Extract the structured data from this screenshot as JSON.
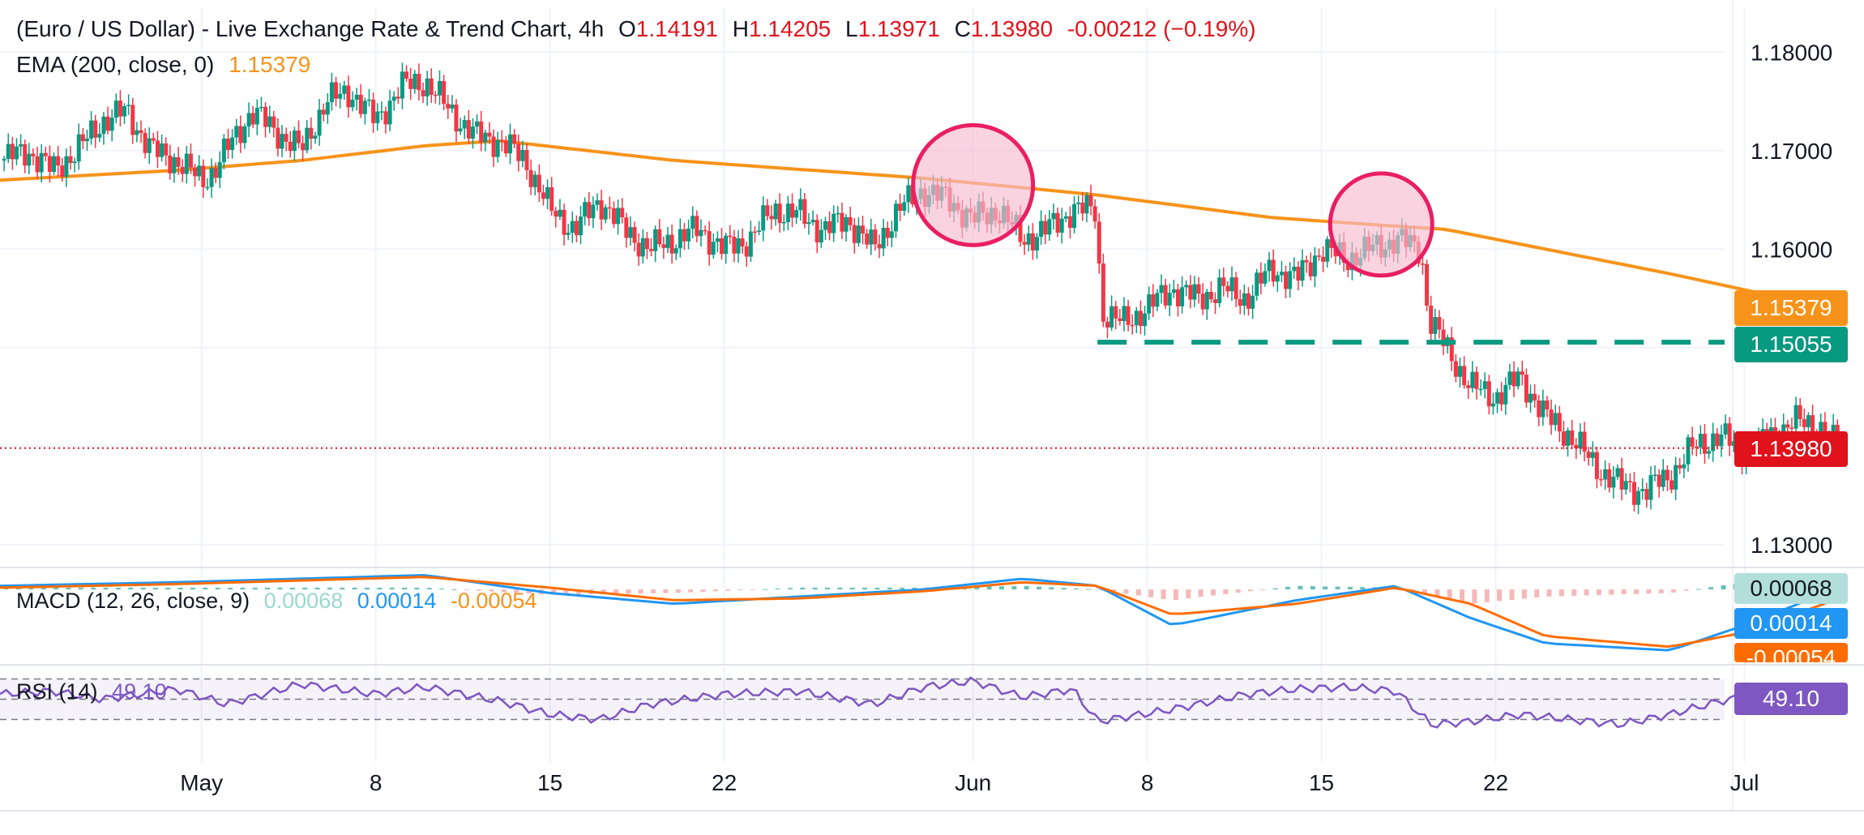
{
  "header": {
    "title": "(Euro / US Dollar) - Live Exchange Rate & Trend Chart, 4h",
    "o_label": "O",
    "open": "1.14191",
    "h_label": "H",
    "high": "1.14205",
    "l_label": "L",
    "low": "1.13971",
    "c_label": "C",
    "close": "1.13980",
    "change": "-0.00212 (−0.19%)"
  },
  "ema_legend": {
    "label": "EMA (200, close, 0)",
    "value": "1.15379"
  },
  "macd_legend": {
    "label": "MACD (12, 26, close, 9)",
    "hist": "0.00068",
    "macd": "0.00014",
    "signal": "-0.00054"
  },
  "rsi_legend": {
    "label": "RSI (14)",
    "value": "49.10"
  },
  "price_tags": {
    "ema": "1.15379",
    "support": "1.15055",
    "last": "1.13980",
    "macd_hist": "0.00068",
    "macd": "0.00014",
    "macd_signal": "-0.00054",
    "rsi": "49.10"
  },
  "colors": {
    "up": "#089981",
    "down": "#f23645",
    "ema": "#f7931a",
    "support": "#089981",
    "last": "#e0121b",
    "macd": "#2196f3",
    "signal": "#ff6d00",
    "rsi": "#7e57c2",
    "circle_stroke": "#e91e63",
    "circle_fill": "#f8bbd0"
  },
  "chart_data": {
    "type": "candlestick",
    "timeframe": "4h",
    "yaxis": {
      "ticks": [
        "1.18000",
        "1.17000",
        "1.16000",
        "1.15000",
        "1.14000",
        "1.13000"
      ],
      "ylim": [
        1.1285,
        1.182
      ]
    },
    "xaxis": {
      "ticks": [
        {
          "label": "May",
          "day": 1
        },
        {
          "label": "8",
          "day": 8
        },
        {
          "label": "15",
          "day": 15
        },
        {
          "label": "22",
          "day": 22
        },
        {
          "label": "Jun",
          "day": 32
        },
        {
          "label": "8",
          "day": 39
        },
        {
          "label": "15",
          "day": 46
        },
        {
          "label": "22",
          "day": 53
        },
        {
          "label": "Jul",
          "day": 63
        }
      ],
      "xlim": [
        -7.1,
        67.8
      ]
    },
    "price_path": [
      [
        -7.1,
        1.169
      ],
      [
        -6.0,
        1.17
      ],
      [
        -5.0,
        1.168
      ],
      [
        -4.0,
        1.17
      ],
      [
        -3.0,
        1.173
      ],
      [
        -2.0,
        1.174
      ],
      [
        -1.0,
        1.17
      ],
      [
        0.0,
        1.169
      ],
      [
        1.0,
        1.167
      ],
      [
        1.5,
        1.168
      ],
      [
        2.0,
        1.17
      ],
      [
        3.0,
        1.174
      ],
      [
        4.0,
        1.172
      ],
      [
        5.0,
        1.17
      ],
      [
        6.0,
        1.175
      ],
      [
        7.0,
        1.176
      ],
      [
        8.0,
        1.173
      ],
      [
        9.0,
        1.1765
      ],
      [
        10.0,
        1.177
      ],
      [
        11.0,
        1.174
      ],
      [
        12.0,
        1.1715
      ],
      [
        13.0,
        1.171
      ],
      [
        14.0,
        1.169
      ],
      [
        15.0,
        1.164
      ],
      [
        16.0,
        1.162
      ],
      [
        17.0,
        1.165
      ],
      [
        18.0,
        1.162
      ],
      [
        19.0,
        1.16
      ],
      [
        20.0,
        1.161
      ],
      [
        21.0,
        1.162
      ],
      [
        22.0,
        1.16
      ],
      [
        23.0,
        1.161
      ],
      [
        24.0,
        1.164
      ],
      [
        25.0,
        1.1635
      ],
      [
        26.0,
        1.162
      ],
      [
        27.0,
        1.163
      ],
      [
        28.0,
        1.16
      ],
      [
        29.0,
        1.164
      ],
      [
        30.0,
        1.166
      ],
      [
        31.0,
        1.165
      ],
      [
        32.0,
        1.163
      ],
      [
        33.0,
        1.164
      ],
      [
        34.0,
        1.161
      ],
      [
        35.0,
        1.162
      ],
      [
        36.0,
        1.164
      ],
      [
        36.9,
        1.164
      ],
      [
        37.2,
        1.1535
      ],
      [
        38.0,
        1.1525
      ],
      [
        39.0,
        1.154
      ],
      [
        40.0,
        1.156
      ],
      [
        41.0,
        1.155
      ],
      [
        42.0,
        1.156
      ],
      [
        43.0,
        1.155
      ],
      [
        44.0,
        1.158
      ],
      [
        45.0,
        1.157
      ],
      [
        46.0,
        1.16
      ],
      [
        47.0,
        1.159
      ],
      [
        48.0,
        1.16
      ],
      [
        49.0,
        1.161
      ],
      [
        50.0,
        1.16
      ],
      [
        50.3,
        1.153
      ],
      [
        51.0,
        1.15
      ],
      [
        52.0,
        1.146
      ],
      [
        53.0,
        1.145
      ],
      [
        54.0,
        1.147
      ],
      [
        55.0,
        1.143
      ],
      [
        56.0,
        1.141
      ],
      [
        57.0,
        1.138
      ],
      [
        58.0,
        1.136
      ],
      [
        59.0,
        1.1355
      ],
      [
        60.0,
        1.137
      ],
      [
        61.0,
        1.14
      ],
      [
        62.0,
        1.141
      ],
      [
        63.0,
        1.1395
      ],
      [
        64.0,
        1.141
      ],
      [
        65.0,
        1.1425
      ],
      [
        66.0,
        1.142
      ],
      [
        66.8,
        1.1398
      ]
    ],
    "ema200": [
      [
        -7.1,
        1.167
      ],
      [
        0.0,
        1.168
      ],
      [
        5.0,
        1.169
      ],
      [
        10.0,
        1.1705
      ],
      [
        13.0,
        1.171
      ],
      [
        20.0,
        1.169
      ],
      [
        30.0,
        1.1672
      ],
      [
        37.0,
        1.1655
      ],
      [
        44.0,
        1.1632
      ],
      [
        48.0,
        1.1625
      ],
      [
        51.0,
        1.162
      ],
      [
        55.0,
        1.16
      ],
      [
        60.0,
        1.1575
      ],
      [
        66.8,
        1.1538
      ]
    ],
    "support_level": {
      "value": 1.15055,
      "from_day": 37.0,
      "to_day": 67.8
    },
    "last_price": 1.1398,
    "highlight_circles": [
      {
        "day": 32.0,
        "price": 1.1665
      },
      {
        "day": 48.4,
        "price": 1.1625
      }
    ],
    "macd": {
      "range": [
        -0.0042,
        0.001
      ],
      "macd_line": [
        [
          -7.1,
          0.0002
        ],
        [
          0,
          0.0004
        ],
        [
          5,
          0.0006
        ],
        [
          10,
          0.0008
        ],
        [
          15,
          -0.0002
        ],
        [
          20,
          -0.0008
        ],
        [
          25,
          -0.0004
        ],
        [
          30,
          0.0
        ],
        [
          34,
          0.0006
        ],
        [
          37,
          0.0002
        ],
        [
          40,
          -0.002
        ],
        [
          45,
          -0.0006
        ],
        [
          49,
          0.0002
        ],
        [
          52,
          -0.0016
        ],
        [
          55,
          -0.003
        ],
        [
          60,
          -0.0034
        ],
        [
          63,
          -0.002
        ],
        [
          66.8,
          0.0001
        ]
      ],
      "signal_line": [
        [
          -7.1,
          0.0001
        ],
        [
          0,
          0.0003
        ],
        [
          5,
          0.0005
        ],
        [
          10,
          0.0007
        ],
        [
          15,
          0.0001
        ],
        [
          20,
          -0.0006
        ],
        [
          25,
          -0.0005
        ],
        [
          30,
          -0.0001
        ],
        [
          34,
          0.0004
        ],
        [
          37,
          0.0002
        ],
        [
          40,
          -0.0014
        ],
        [
          45,
          -0.0008
        ],
        [
          49,
          0.0001
        ],
        [
          52,
          -0.0008
        ],
        [
          55,
          -0.0026
        ],
        [
          60,
          -0.0032
        ],
        [
          63,
          -0.0024
        ],
        [
          66.8,
          -0.0005
        ]
      ]
    },
    "rsi": {
      "range": [
        20,
        80
      ],
      "upper": 70,
      "mid": 50,
      "lower": 30,
      "series": [
        [
          -7.1,
          55
        ],
        [
          -5,
          58
        ],
        [
          -3,
          50
        ],
        [
          0,
          60
        ],
        [
          2,
          45
        ],
        [
          5,
          65
        ],
        [
          8,
          55
        ],
        [
          10,
          62
        ],
        [
          13,
          48
        ],
        [
          15,
          35
        ],
        [
          17,
          30
        ],
        [
          19,
          45
        ],
        [
          22,
          55
        ],
        [
          25,
          58
        ],
        [
          28,
          45
        ],
        [
          30,
          62
        ],
        [
          32,
          68
        ],
        [
          34,
          52
        ],
        [
          36,
          60
        ],
        [
          37,
          28
        ],
        [
          40,
          40
        ],
        [
          43,
          55
        ],
        [
          45,
          60
        ],
        [
          47,
          62
        ],
        [
          49,
          58
        ],
        [
          50.4,
          25
        ],
        [
          52,
          28
        ],
        [
          54,
          35
        ],
        [
          56,
          30
        ],
        [
          58,
          25
        ],
        [
          60,
          35
        ],
        [
          62,
          48
        ],
        [
          64,
          58
        ],
        [
          65.6,
          60
        ],
        [
          66.8,
          49
        ]
      ]
    }
  }
}
